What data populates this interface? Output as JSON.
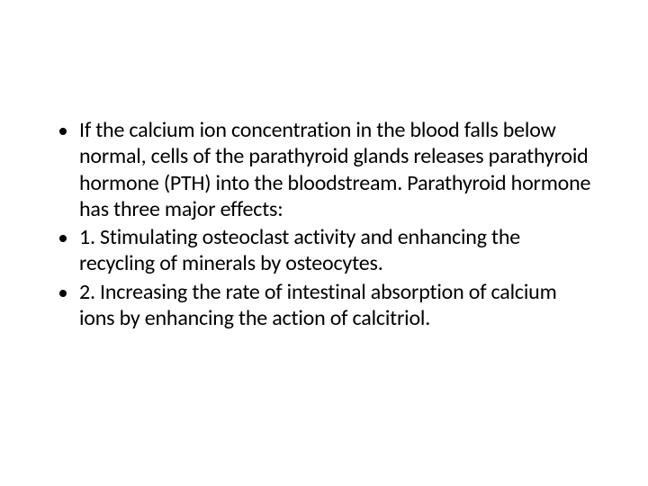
{
  "slide": {
    "background_color": "#ffffff",
    "text_color": "#000000",
    "font_family": "Calibri",
    "font_size_pt": 24,
    "bullets": [
      {
        "text": "If the calcium ion concentration in the blood falls below normal, cells of the parathyroid glands releases parathyroid hormone (PTH) into the bloodstream. Parathyroid hormone has three major effects:"
      },
      {
        "text": "1.  Stimulating osteoclast activity and enhancing the recycling of minerals by osteocytes."
      },
      {
        "text": "2.  Increasing the rate of intestinal absorption of calcium ions by enhancing the action of calcitriol."
      }
    ]
  }
}
